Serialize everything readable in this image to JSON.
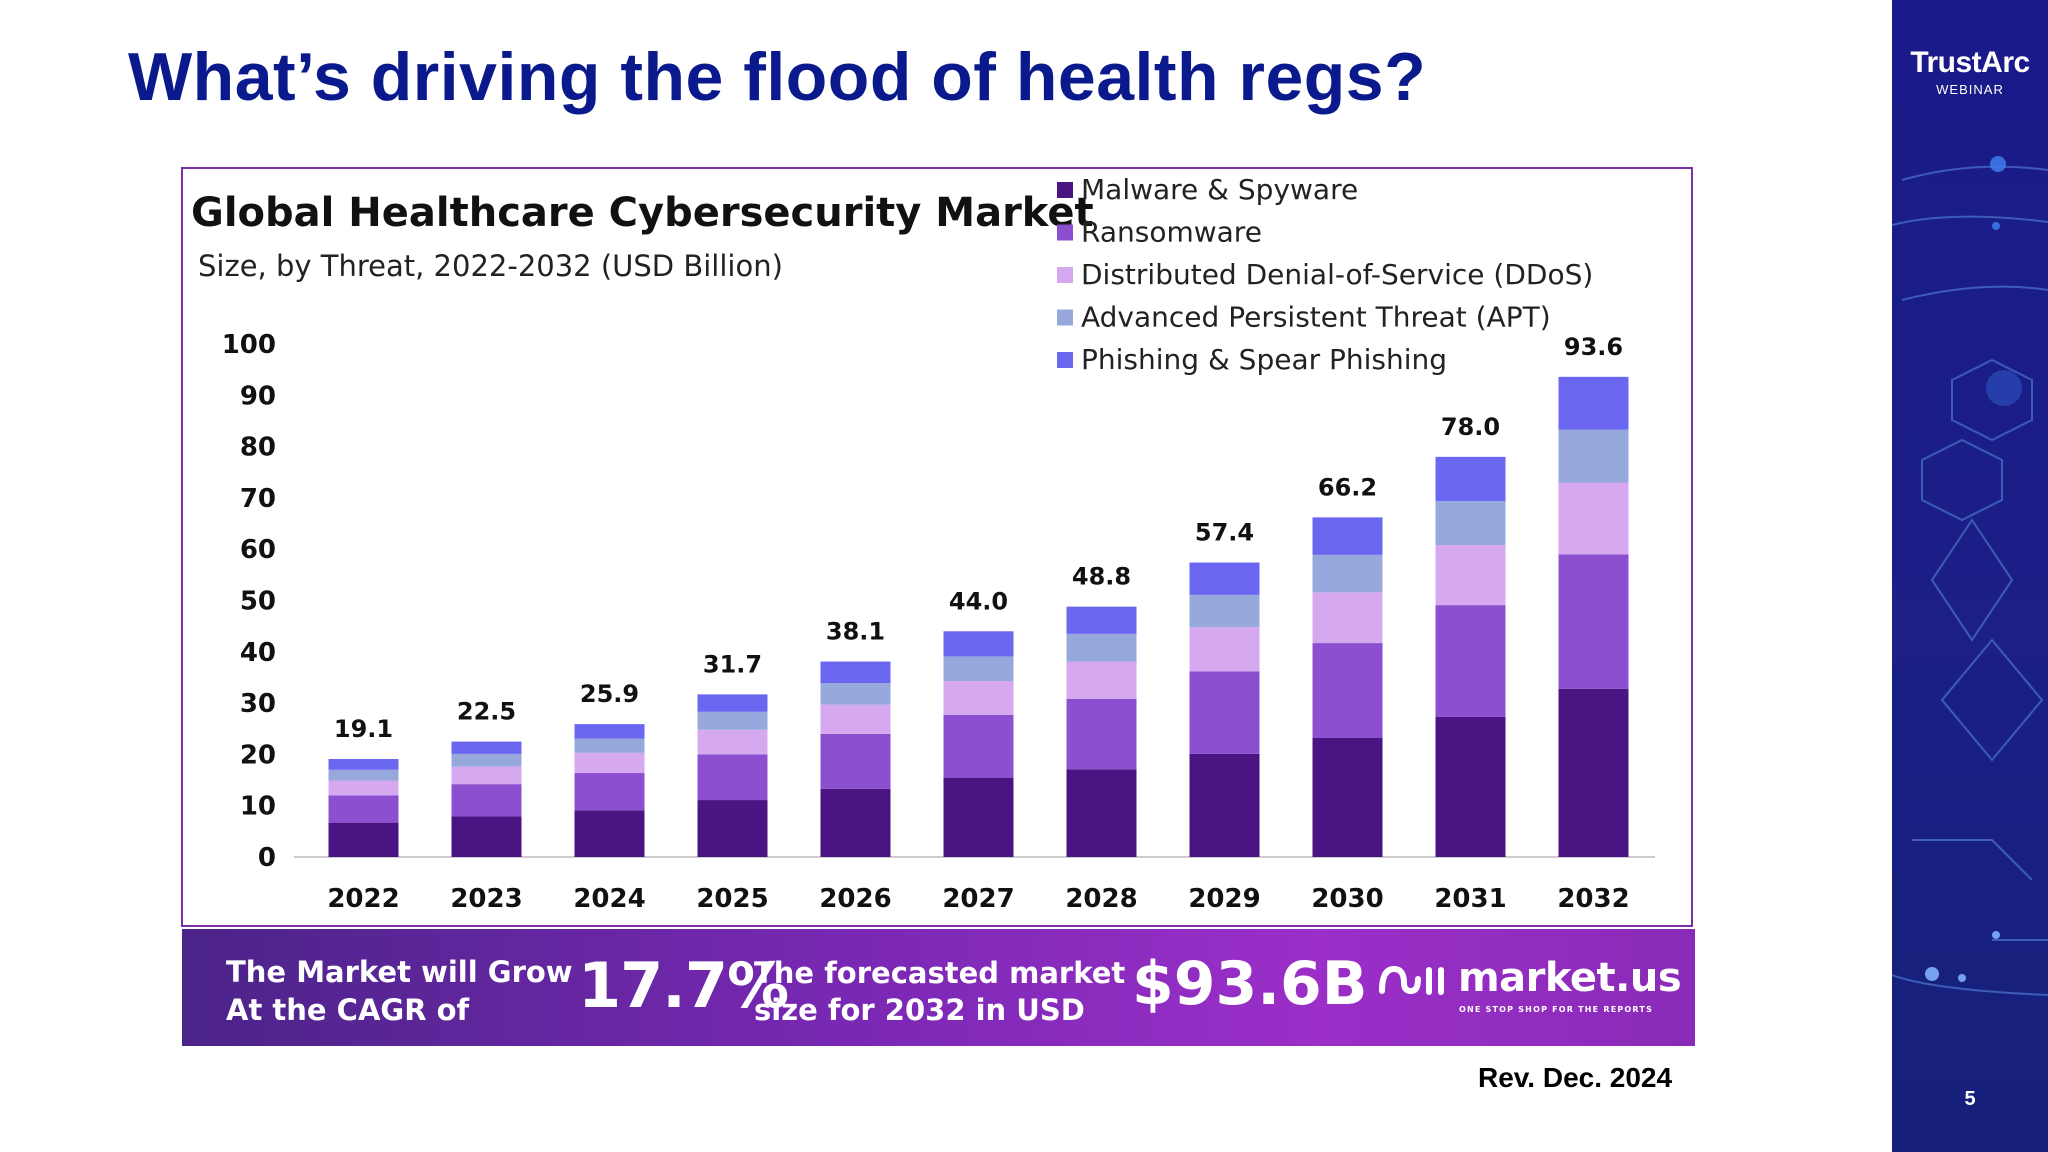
{
  "slide": {
    "title": "What’s driving the flood of health regs?",
    "revision": "Rev. Dec. 2024",
    "page_number": "5"
  },
  "sidebar": {
    "brand": "TrustArc",
    "subtitle": "WEBINAR",
    "background_color": "#1a1a8a"
  },
  "banner": {
    "grow_line1": "The Market will Grow",
    "grow_line2": "At the CAGR of",
    "cagr_value": "17.7%",
    "forecast_line1": "The forecasted market",
    "forecast_line2": "size for 2032 in USD",
    "forecast_value": "$93.6B",
    "brand": "market.us",
    "brand_tagline": "ONE STOP SHOP FOR THE REPORTS"
  },
  "chart_data": {
    "type": "bar",
    "stacked": true,
    "title": "Global Healthcare Cybersecurity Market",
    "subtitle": "Size, by Threat, 2022-2032 (USD Billion)",
    "xlabel": "",
    "ylabel": "",
    "ylim": [
      0,
      100
    ],
    "yticks": [
      0,
      10,
      20,
      30,
      40,
      50,
      60,
      70,
      80,
      90,
      100
    ],
    "grid": false,
    "legend_position": "top-right",
    "categories": [
      "2022",
      "2023",
      "2024",
      "2025",
      "2026",
      "2027",
      "2028",
      "2029",
      "2030",
      "2031",
      "2032"
    ],
    "totals": [
      19.1,
      22.5,
      25.9,
      31.7,
      38.1,
      44.0,
      48.8,
      57.4,
      66.2,
      78.0,
      93.6
    ],
    "total_labels": [
      "19.1",
      "22.5",
      "25.9",
      "31.7",
      "38.1",
      "44.0",
      "48.8",
      "57.4",
      "66.2",
      "78.0",
      "93.6"
    ],
    "series": [
      {
        "name": "Malware & Spyware",
        "color": "#4a1583",
        "values": [
          6.7,
          7.9,
          9.1,
          11.1,
          13.3,
          15.4,
          17.1,
          20.1,
          23.2,
          27.3,
          32.8
        ]
      },
      {
        "name": "Ransomware",
        "color": "#8c4fcf",
        "values": [
          5.3,
          6.3,
          7.3,
          8.9,
          10.7,
          12.3,
          13.7,
          16.1,
          18.5,
          21.8,
          26.2
        ]
      },
      {
        "name": "Distributed Denial-of-Service (DDoS)",
        "color": "#d5a8ef",
        "values": [
          2.9,
          3.4,
          3.9,
          4.8,
          5.7,
          6.6,
          7.3,
          8.6,
          9.9,
          11.7,
          14.0
        ]
      },
      {
        "name": "Advanced Persistent Threat (APT)",
        "color": "#97a9dc",
        "values": [
          2.1,
          2.5,
          2.8,
          3.5,
          4.2,
          4.8,
          5.4,
          6.3,
          7.3,
          8.6,
          10.3
        ]
      },
      {
        "name": "Phishing & Spear Phishing",
        "color": "#6a66f0",
        "values": [
          2.1,
          2.4,
          2.8,
          3.4,
          4.2,
          4.9,
          5.3,
          6.3,
          7.3,
          8.6,
          10.3
        ]
      }
    ]
  }
}
